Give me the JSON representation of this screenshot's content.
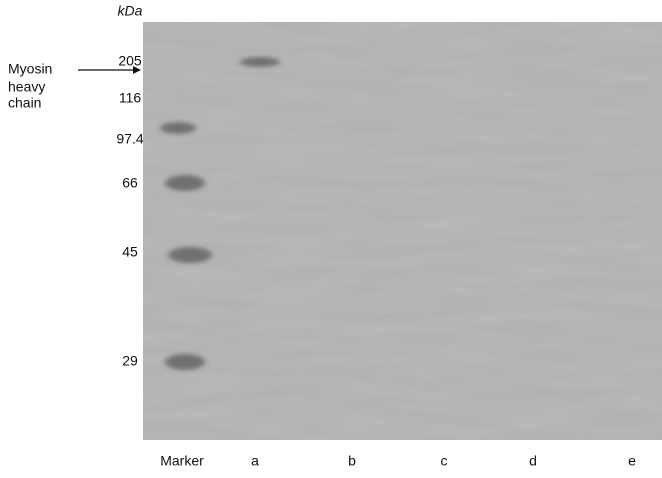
{
  "unit": "kDa",
  "markers": [
    "205",
    "116",
    "97.4",
    "66",
    "45",
    "29"
  ],
  "annotation": {
    "lines": [
      "Myosin",
      "heavy",
      "chain"
    ]
  },
  "lanes": [
    "Marker",
    "a",
    "b",
    "c",
    "d",
    "e"
  ]
}
